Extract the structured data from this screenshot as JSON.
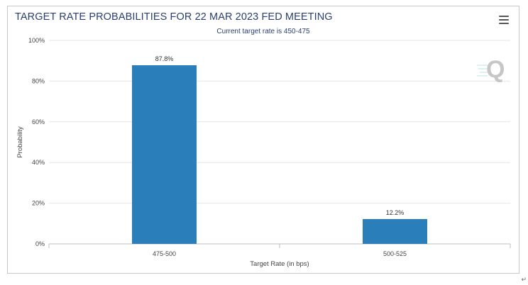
{
  "chart_data": {
    "type": "bar",
    "title": "TARGET RATE PROBABILITIES FOR 22 MAR 2023 FED MEETING",
    "subtitle": "Current target rate is 450-475",
    "categories": [
      "475-500",
      "500-525"
    ],
    "values": [
      87.8,
      12.2
    ],
    "value_labels": [
      "87.8%",
      "12.2%"
    ],
    "xlabel": "Target Rate (in bps)",
    "ylabel": "Probability",
    "ylim": [
      0,
      100
    ],
    "yticks": [
      0,
      20,
      40,
      60,
      80,
      100
    ],
    "ytick_labels": [
      "0%",
      "20%",
      "40%",
      "60%",
      "80%",
      "100%"
    ],
    "grid": "horizontal",
    "bar_color": "#2a7fbb",
    "logo_text": "Q"
  },
  "corner_mark": "↵"
}
